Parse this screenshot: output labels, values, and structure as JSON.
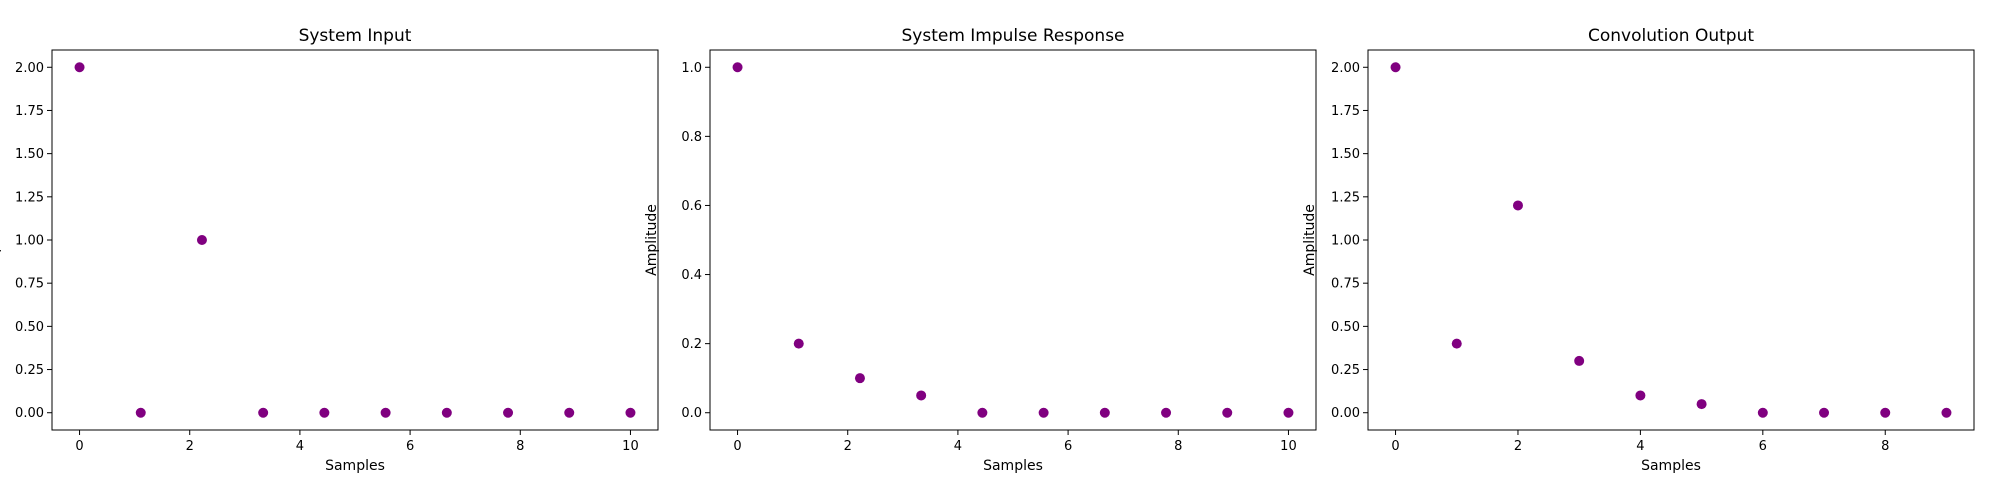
{
  "colors": {
    "marker": "#800080",
    "axes": "#000000"
  },
  "chart_data": [
    {
      "type": "scatter",
      "title": "System Input",
      "xlabel": "Samples",
      "ylabel": "Amplitude",
      "x": [
        0,
        1.111,
        2.222,
        3.333,
        4.444,
        5.556,
        6.667,
        7.778,
        8.889,
        10
      ],
      "y": [
        2,
        0,
        1,
        0,
        0,
        0,
        0,
        0,
        0,
        0
      ],
      "xlim": [
        -0.5,
        10.5
      ],
      "ylim": [
        -0.1,
        2.1
      ],
      "xticks": [
        0,
        2,
        4,
        6,
        8,
        10
      ],
      "yticks": [
        0,
        0.25,
        0.5,
        0.75,
        1,
        1.25,
        1.5,
        1.75,
        2
      ],
      "ytick_labels": [
        "0.00",
        "0.25",
        "0.50",
        "0.75",
        "1.00",
        "1.25",
        "1.50",
        "1.75",
        "2.00"
      ],
      "grid": false,
      "legend": "none"
    },
    {
      "type": "scatter",
      "title": "System Impulse Response",
      "xlabel": "Samples",
      "ylabel": "Amplitude",
      "x": [
        0,
        1.111,
        2.222,
        3.333,
        4.444,
        5.556,
        6.667,
        7.778,
        8.889,
        10
      ],
      "y": [
        1,
        0.2,
        0.1,
        0.05,
        0,
        0,
        0,
        0,
        0,
        0
      ],
      "xlim": [
        -0.5,
        10.5
      ],
      "ylim": [
        -0.05,
        1.05
      ],
      "xticks": [
        0,
        2,
        4,
        6,
        8,
        10
      ],
      "yticks": [
        0,
        0.2,
        0.4,
        0.6,
        0.8,
        1
      ],
      "ytick_labels": [
        "0.0",
        "0.2",
        "0.4",
        "0.6",
        "0.8",
        "1.0"
      ],
      "grid": false,
      "legend": "none"
    },
    {
      "type": "scatter",
      "title": "Convolution Output",
      "xlabel": "Samples",
      "ylabel": "Amplitude",
      "x": [
        0,
        1,
        2,
        3,
        4,
        5,
        6,
        7,
        8,
        9
      ],
      "y": [
        2,
        0.4,
        1.2,
        0.3,
        0.1,
        0.05,
        0,
        0,
        0,
        0
      ],
      "xlim": [
        -0.45,
        9.45
      ],
      "ylim": [
        -0.1,
        2.1
      ],
      "xticks": [
        0,
        2,
        4,
        6,
        8
      ],
      "yticks": [
        0,
        0.25,
        0.5,
        0.75,
        1,
        1.25,
        1.5,
        1.75,
        2
      ],
      "ytick_labels": [
        "0.00",
        "0.25",
        "0.50",
        "0.75",
        "1.00",
        "1.25",
        "1.50",
        "1.75",
        "2.00"
      ],
      "grid": false,
      "legend": "none"
    }
  ]
}
